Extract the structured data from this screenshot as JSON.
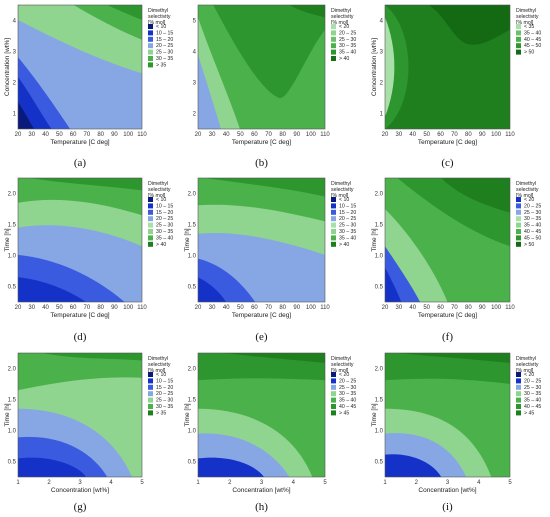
{
  "legend_title_lines": [
    "Dimethyl",
    "selectivity",
    "[% mol]"
  ],
  "level_colors": {
    "L10": "#0a1a7a",
    "L10_15": "#1432c8",
    "L15_20": "#3a5ae0",
    "L20_25": "#86a7e4",
    "L25_30": "#8fd48f",
    "L30_35": "#4bb24b",
    "L35_40": "#2e962e",
    "L40_45": "#1f7f1f",
    "L45_50": "#136a13",
    "L50": "#0a520a"
  },
  "chart_data": [
    {
      "panel": "(a)",
      "type": "contour",
      "xlabel": "Temperature  [C deg]",
      "ylabel": "Concentration  [wt%]",
      "xlim": [
        20,
        110
      ],
      "ylim": [
        1,
        5
      ],
      "xticks": [
        "20",
        "30",
        "40",
        "50",
        "60",
        "70",
        "80",
        "90",
        "100",
        "110"
      ],
      "yticks": [
        "1",
        "2",
        "3",
        "4"
      ],
      "legend": [
        {
          "label": "<   10",
          "color": "#0a1a7a"
        },
        {
          "label": "10  –  15",
          "color": "#1432c8"
        },
        {
          "label": "15  –  20",
          "color": "#3a5ae0"
        },
        {
          "label": "20  –  25",
          "color": "#86a7e4"
        },
        {
          "label": "25  –  30",
          "color": "#8fd48f"
        },
        {
          "label": "30  –  35",
          "color": "#4bb24b"
        },
        {
          "label": ">   35",
          "color": "#2e962e"
        }
      ]
    },
    {
      "panel": "(b)",
      "type": "contour",
      "xlabel": "Temperature  [C deg]",
      "ylabel": "",
      "xlim": [
        20,
        110
      ],
      "ylim": [
        1,
        5
      ],
      "xticks": [
        "20",
        "30",
        "40",
        "50",
        "60",
        "70",
        "80",
        "90",
        "100",
        "110"
      ],
      "yticks": [
        "2",
        "3",
        "4",
        "5"
      ],
      "legend": [
        {
          "label": "<   20",
          "color": "#a9e0a9"
        },
        {
          "label": "20  –  25",
          "color": "#8fd48f"
        },
        {
          "label": "25  –  30",
          "color": "#6cc26c"
        },
        {
          "label": "30  –  35",
          "color": "#4bb24b"
        },
        {
          "label": "35  –  40",
          "color": "#2e962e"
        },
        {
          "label": ">   40",
          "color": "#1a6e1a"
        }
      ]
    },
    {
      "panel": "(c)",
      "type": "contour",
      "xlabel": "Temperature  [C deg]",
      "ylabel": "Concentration  [wt%]",
      "xlim": [
        20,
        110
      ],
      "ylim": [
        1,
        5
      ],
      "xticks": [
        "20",
        "30",
        "40",
        "50",
        "60",
        "70",
        "80",
        "90",
        "100",
        "110"
      ],
      "yticks": [
        "1",
        "2",
        "3",
        "4"
      ],
      "legend": [
        {
          "label": "<   35",
          "color": "#a9e0a9"
        },
        {
          "label": "35  –  40",
          "color": "#6cc26c"
        },
        {
          "label": "40  –  45",
          "color": "#4bb24b"
        },
        {
          "label": "45  –  50",
          "color": "#2e962e"
        },
        {
          "label": ">   50",
          "color": "#136a13"
        }
      ]
    },
    {
      "panel": "(d)",
      "type": "contour",
      "xlabel": "Temperature  [C deg]",
      "ylabel": "Time  [h]",
      "xlim": [
        20,
        110
      ],
      "ylim": [
        0.2,
        2.0
      ],
      "xticks": [
        "20",
        "30",
        "40",
        "50",
        "60",
        "70",
        "80",
        "90",
        "100",
        "110"
      ],
      "yticks": [
        "0.5",
        "1.0",
        "1.5",
        "2.0"
      ],
      "legend": [
        {
          "label": "<   10",
          "color": "#0a1a7a"
        },
        {
          "label": "10  –  15",
          "color": "#1432c8"
        },
        {
          "label": "15  –  20",
          "color": "#3a5ae0"
        },
        {
          "label": "20  –  25",
          "color": "#86a7e4"
        },
        {
          "label": "25  –  30",
          "color": "#a9e0a9"
        },
        {
          "label": "30  –  35",
          "color": "#8fd48f"
        },
        {
          "label": "35  –  40",
          "color": "#4bb24b"
        },
        {
          "label": ">   40",
          "color": "#1f7f1f"
        }
      ]
    },
    {
      "panel": "(e)",
      "type": "contour",
      "xlabel": "Temperature  [C deg]",
      "ylabel": "Time  [h]",
      "xlim": [
        20,
        110
      ],
      "ylim": [
        0.2,
        2.0
      ],
      "xticks": [
        "20",
        "30",
        "40",
        "50",
        "60",
        "70",
        "80",
        "90",
        "100",
        "110"
      ],
      "yticks": [
        "0.5",
        "1.0",
        "1.5",
        "2.0"
      ],
      "legend": [
        {
          "label": "<   10",
          "color": "#0a1a7a"
        },
        {
          "label": "10  –  15",
          "color": "#1432c8"
        },
        {
          "label": "15  –  20",
          "color": "#3a5ae0"
        },
        {
          "label": "20  –  25",
          "color": "#86a7e4"
        },
        {
          "label": "25  –  30",
          "color": "#a9e0a9"
        },
        {
          "label": "30  –  35",
          "color": "#8fd48f"
        },
        {
          "label": "35  –  40",
          "color": "#4bb24b"
        },
        {
          "label": ">   40",
          "color": "#1f7f1f"
        }
      ]
    },
    {
      "panel": "(f)",
      "type": "contour",
      "xlabel": "Temperature  [C deg]",
      "ylabel": "Time  [h]",
      "xlim": [
        20,
        110
      ],
      "ylim": [
        0.2,
        2.0
      ],
      "xticks": [
        "20",
        "30",
        "40",
        "50",
        "60",
        "70",
        "80",
        "90",
        "100",
        "110"
      ],
      "yticks": [
        "0.5",
        "1.0",
        "1.5",
        "2.0"
      ],
      "legend": [
        {
          "label": "<   20",
          "color": "#1432c8"
        },
        {
          "label": "20  –  25",
          "color": "#3a5ae0"
        },
        {
          "label": "25  –  30",
          "color": "#86a7e4"
        },
        {
          "label": "30  –  35",
          "color": "#a9e0a9"
        },
        {
          "label": "35  –  40",
          "color": "#8fd48f"
        },
        {
          "label": "40  –  45",
          "color": "#4bb24b"
        },
        {
          "label": "45  –  50",
          "color": "#2e962e"
        },
        {
          "label": ">   50",
          "color": "#136a13"
        }
      ]
    },
    {
      "panel": "(g)",
      "type": "contour",
      "xlabel": "Concentration  [wt%]",
      "ylabel": "Time  [h]",
      "xlim": [
        1,
        5
      ],
      "ylim": [
        0.2,
        2.0
      ],
      "xticks": [
        "1",
        "2",
        "3",
        "4",
        "5"
      ],
      "yticks": [
        "0.5",
        "1.0",
        "1.5",
        "2.0"
      ],
      "legend": [
        {
          "label": "<   10",
          "color": "#0a1a7a"
        },
        {
          "label": "10  –  15",
          "color": "#1432c8"
        },
        {
          "label": "15  –  20",
          "color": "#3a5ae0"
        },
        {
          "label": "20  –  25",
          "color": "#86a7e4"
        },
        {
          "label": "25  –  30",
          "color": "#8fd48f"
        },
        {
          "label": "30  –  35",
          "color": "#4bb24b"
        },
        {
          "label": ">   35",
          "color": "#1f7f1f"
        }
      ]
    },
    {
      "panel": "(h)",
      "type": "contour",
      "xlabel": "Concentration  [wt%]",
      "ylabel": "Time  [h]",
      "xlim": [
        1,
        5
      ],
      "ylim": [
        0.2,
        2.0
      ],
      "xticks": [
        "1",
        "2",
        "3",
        "4",
        "5"
      ],
      "yticks": [
        "0.5",
        "1.0",
        "1.5",
        "2.0"
      ],
      "legend": [
        {
          "label": "<   20",
          "color": "#0a1a7a"
        },
        {
          "label": "20  –  25",
          "color": "#1432c8"
        },
        {
          "label": "25  –  30",
          "color": "#86a7e4"
        },
        {
          "label": "30  –  35",
          "color": "#8fd48f"
        },
        {
          "label": "35  –  40",
          "color": "#4bb24b"
        },
        {
          "label": "40  –  45",
          "color": "#2e962e"
        },
        {
          "label": ">   45",
          "color": "#1f7f1f"
        }
      ]
    },
    {
      "panel": "(i)",
      "type": "contour",
      "xlabel": "Concentration  [wt%]",
      "ylabel": "Time  [h]",
      "xlim": [
        1,
        5
      ],
      "ylim": [
        0.2,
        2.0
      ],
      "xticks": [
        "1",
        "2",
        "3",
        "4",
        "5"
      ],
      "yticks": [
        "0.5",
        "1.0",
        "1.5",
        "2.0"
      ],
      "legend": [
        {
          "label": "<   20",
          "color": "#0a1a7a"
        },
        {
          "label": "20  –  25",
          "color": "#1432c8"
        },
        {
          "label": "25  –  30",
          "color": "#86a7e4"
        },
        {
          "label": "30  –  35",
          "color": "#8fd48f"
        },
        {
          "label": "35  –  40",
          "color": "#4bb24b"
        },
        {
          "label": "40  –  45",
          "color": "#2e962e"
        },
        {
          "label": ">   45",
          "color": "#1f7f1f"
        }
      ]
    }
  ]
}
